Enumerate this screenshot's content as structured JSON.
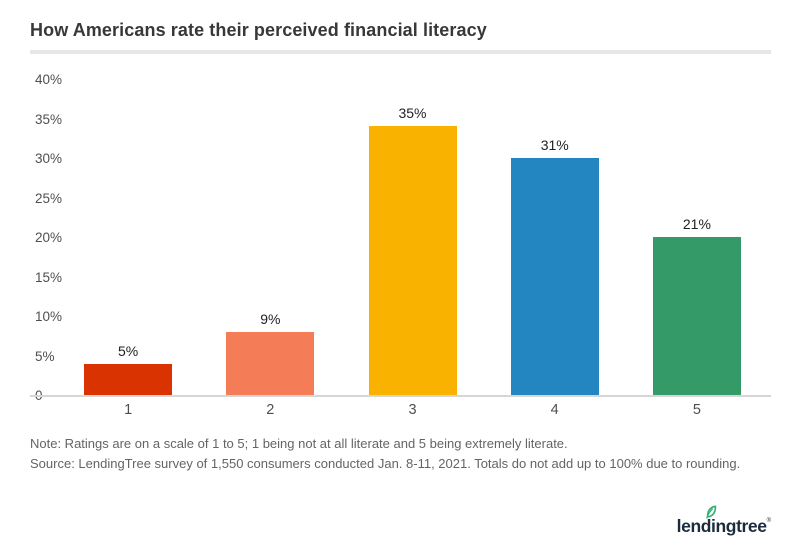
{
  "title": "How Americans rate their perceived financial literacy",
  "notes": {
    "line1": "Note: Ratings are on a scale of 1 to 5; 1 being not at all literate and 5 being extremely literate.",
    "line2": "Source: LendingTree survey of 1,550 consumers conducted Jan. 8-11, 2021. Totals do not add up to 100% due to rounding."
  },
  "logo": {
    "wordmark": "lendingtree",
    "trademark": "®",
    "text_color": "#1c2b3d",
    "leaf_color": "#2fb273"
  },
  "chart_data": {
    "type": "bar",
    "title": "How Americans rate their perceived financial literacy",
    "categories": [
      "1",
      "2",
      "3",
      "4",
      "5"
    ],
    "values": [
      5,
      9,
      35,
      31,
      21
    ],
    "value_labels": [
      "5%",
      "9%",
      "35%",
      "31%",
      "21%"
    ],
    "bar_colors": [
      "#d83300",
      "#f47d58",
      "#f9b200",
      "#2386c1",
      "#339a68"
    ],
    "y_ticks": [
      "40%",
      "35%",
      "30%",
      "25%",
      "20%",
      "15%",
      "10%",
      "5%",
      "0"
    ],
    "ylim": [
      0,
      40
    ],
    "rendered_bar_heights_pct": [
      4,
      8,
      34,
      30,
      20
    ],
    "xlabel": "",
    "ylabel": "",
    "grid": false,
    "legend": false
  }
}
